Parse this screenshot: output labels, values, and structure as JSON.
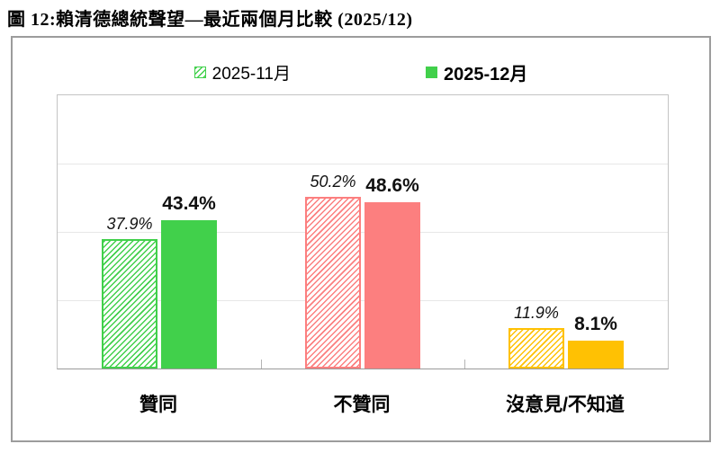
{
  "title": "圖 12:賴清德總統聲望—最近兩個月比較 (2025/12)",
  "legend": [
    {
      "label": "2025-11月",
      "style": "hatched",
      "bold": false
    },
    {
      "label": "2025-12月",
      "style": "solid",
      "bold": true
    }
  ],
  "chart_data": {
    "type": "bar",
    "title": "賴清德總統聲望—最近兩個月比較 (2025/12)",
    "categories": [
      "贊同",
      "不贊同",
      "沒意見/不知道"
    ],
    "series": [
      {
        "name": "2025-11月",
        "style": "hatched",
        "label_style": "italic",
        "values": [
          37.9,
          50.2,
          11.9
        ]
      },
      {
        "name": "2025-12月",
        "style": "solid",
        "label_style": "bold",
        "values": [
          43.4,
          48.6,
          8.1
        ]
      }
    ],
    "colors": {
      "贊同": "#41d04b",
      "不贊同": "#fc7f7f",
      "沒意見/不知道": "#ffc103"
    },
    "value_suffix": "%",
    "xlabel": "",
    "ylabel": "",
    "ylim": [
      0,
      80
    ],
    "gridline_interval": 20,
    "grid": true,
    "y_tick_labels_shown": false,
    "legend_position": "top"
  }
}
